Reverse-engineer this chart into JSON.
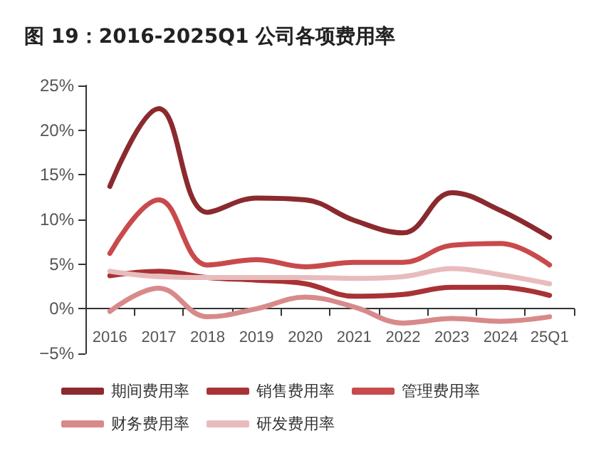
{
  "chart_data": {
    "type": "line",
    "title": "图 19：2016-2025Q1 公司各项费用率",
    "categories": [
      "2016",
      "2017",
      "2018",
      "2019",
      "2020",
      "2021",
      "2022",
      "2023",
      "2024",
      "25Q1"
    ],
    "series": [
      {
        "name": "期间费用率",
        "color": "#8b2a2e",
        "values": [
          13.7,
          22.4,
          10.8,
          12.4,
          12.2,
          9.9,
          8.5,
          13.0,
          11.0,
          8.0
        ]
      },
      {
        "name": "销售费用率",
        "color": "#a83236",
        "values": [
          3.7,
          4.2,
          3.5,
          3.2,
          2.8,
          1.4,
          1.6,
          2.4,
          2.4,
          1.5
        ]
      },
      {
        "name": "管理费用率",
        "color": "#c94a4c",
        "values": [
          6.2,
          12.2,
          4.9,
          5.5,
          4.7,
          5.2,
          5.2,
          7.1,
          7.3,
          4.9
        ]
      },
      {
        "name": "财务费用率",
        "color": "#d88a8a",
        "values": [
          -0.3,
          2.3,
          -0.9,
          0,
          1.3,
          0.2,
          -1.6,
          -1.1,
          -1.4,
          -0.9
        ]
      },
      {
        "name": "研发费用率",
        "color": "#e8bcbc",
        "values": [
          4.2,
          3.6,
          3.5,
          3.5,
          3.5,
          3.4,
          3.6,
          4.5,
          3.8,
          2.8
        ]
      }
    ],
    "ylim": [
      -5,
      25
    ],
    "yticks": [
      {
        "value": -5,
        "label": "−5%"
      },
      {
        "value": 0,
        "label": "0%"
      },
      {
        "value": 5,
        "label": "5%"
      },
      {
        "value": 10,
        "label": "10%"
      },
      {
        "value": 15,
        "label": "15%"
      },
      {
        "value": 20,
        "label": "20%"
      },
      {
        "value": 25,
        "label": "25%"
      }
    ],
    "grid": false,
    "legend": "bottom",
    "marker": "none",
    "line_style": "solid"
  }
}
